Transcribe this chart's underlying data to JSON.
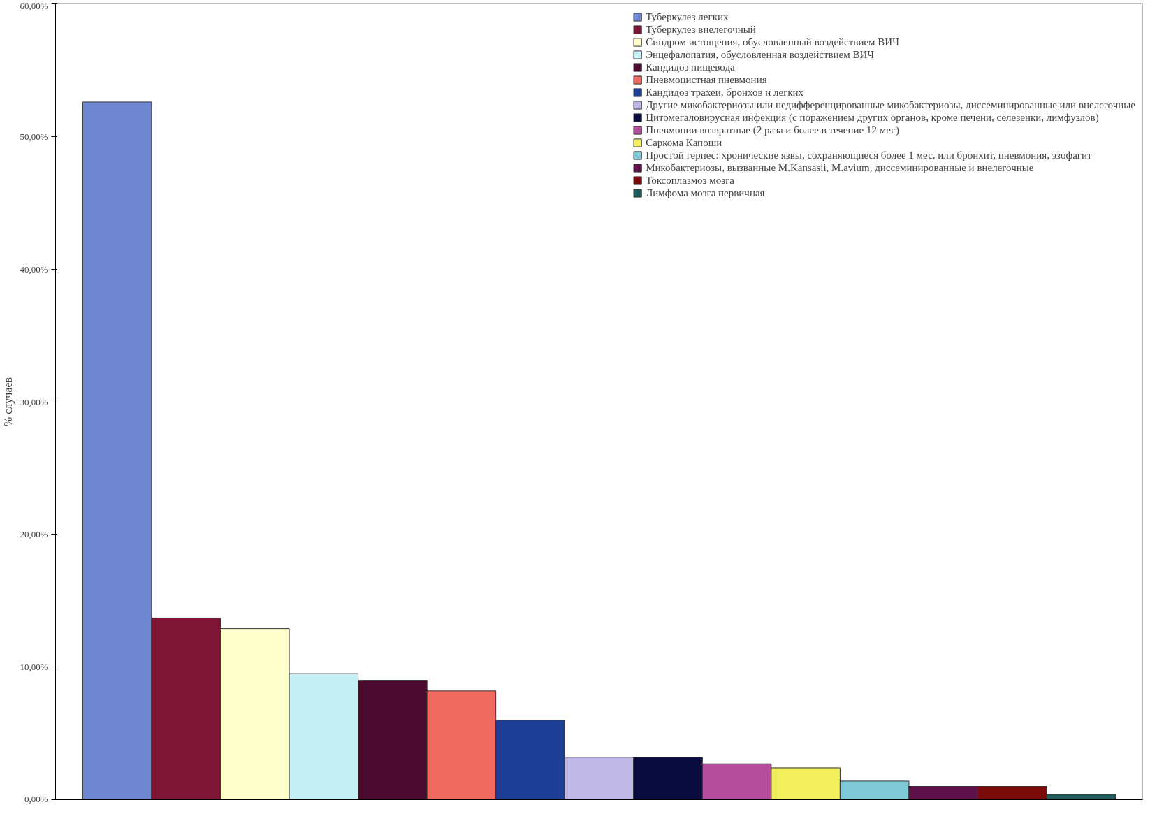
{
  "chart_data": {
    "type": "bar",
    "ylabel": "% случаев",
    "categories": [
      null
    ],
    "ylim": [
      0,
      60
    ],
    "yticks": [
      {
        "value": 0,
        "label": "0,00%"
      },
      {
        "value": 10,
        "label": "10,00%"
      },
      {
        "value": 20,
        "label": "20,00%"
      },
      {
        "value": 30,
        "label": "30,00%"
      },
      {
        "value": 40,
        "label": "40,00%"
      },
      {
        "value": 50,
        "label": "50,00%"
      },
      {
        "value": 60,
        "label": "60,00%"
      }
    ],
    "legend": "top right",
    "grid": false,
    "series": [
      {
        "name": "Туберкулез легких",
        "color": "#6f87d0",
        "values": [
          52.6
        ]
      },
      {
        "name": "Туберкулез внелегочный",
        "color": "#7e1535",
        "values": [
          13.7
        ]
      },
      {
        "name": "Синдром истощения, обусловленный воздействием ВИЧ",
        "color": "#ffffcc",
        "values": [
          12.9
        ]
      },
      {
        "name": "Энцефалопатия, обусловленная воздействием ВИЧ",
        "color": "#c6f0f5",
        "values": [
          9.5
        ]
      },
      {
        "name": "Кандидоз пищевода",
        "color": "#4a0b2e",
        "values": [
          9.0
        ]
      },
      {
        "name": "Пневмоцистная пневмония",
        "color": "#f06a62",
        "values": [
          8.2
        ]
      },
      {
        "name": "Кандидоз трахеи, бронхов и легких",
        "color": "#1d3f96",
        "values": [
          6.0
        ]
      },
      {
        "name": "Другие микобактериозы или недифференцированные микобактериозы, диссеминированные или внелегочные",
        "color": "#c0b8e6",
        "values": [
          3.2
        ]
      },
      {
        "name": "Цитомегаловирусная инфекция (с поражением других органов, кроме печени, селезенки, лимфузлов)",
        "color": "#0a0c40",
        "values": [
          3.2
        ]
      },
      {
        "name": "Пневмонии возвратные (2 раза и более в течение 12 мес)",
        "color": "#b44e9c",
        "values": [
          2.7
        ]
      },
      {
        "name": "Саркома Капоши",
        "color": "#f1ef5c",
        "values": [
          2.4
        ]
      },
      {
        "name": "Простой герпес: хронические язвы, сохраняющиеся более 1 мес, или бронхит, пневмония, эзофагит",
        "color": "#7fcad6",
        "values": [
          1.4
        ]
      },
      {
        "name": "Микобактериозы, вызванные M.Kansasii, M.avium, диссеминированные и внелегочные",
        "color": "#5c1248",
        "values": [
          1.0
        ]
      },
      {
        "name": "Токсоплазмоз мозга",
        "color": "#7a0a0a",
        "values": [
          1.0
        ]
      },
      {
        "name": "Лимфома мозга первичная",
        "color": "#1e5a5a",
        "values": [
          0.4
        ]
      }
    ]
  }
}
